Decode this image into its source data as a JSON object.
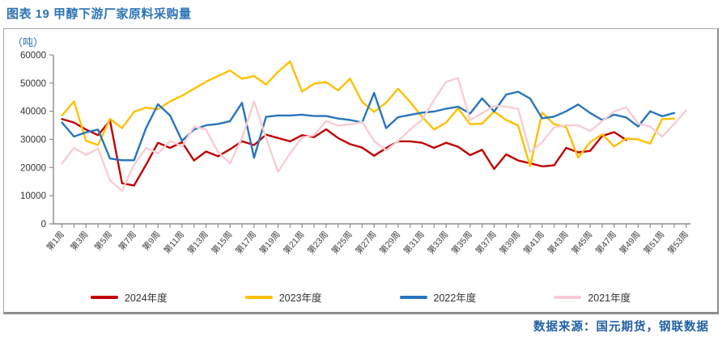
{
  "page": {
    "title": "图表 19  甲醇下游厂家原料采购量",
    "source": "数据来源：国元期货，钢联数据"
  },
  "chart_data": {
    "type": "line",
    "title": "甲醇下游厂家原料采购量",
    "unit_label": "（吨）",
    "ylabel": "吨",
    "ylim": [
      0,
      60000
    ],
    "ytick_step": 10000,
    "y_tick_labels": [
      "0",
      "10000",
      "20000",
      "30000",
      "40000",
      "50000",
      "60000"
    ],
    "weeks": 53,
    "x_tick_labels": [
      "第1周",
      "第3周",
      "第5周",
      "第7周",
      "第9周",
      "第11周",
      "第13周",
      "第15周",
      "第17周",
      "第19周",
      "第21周",
      "第23周",
      "第25周",
      "第27周",
      "第29周",
      "第31周",
      "第33周",
      "第35周",
      "第37周",
      "第39周",
      "第41周",
      "第43周",
      "第45周",
      "第47周",
      "第49周",
      "第51周",
      "第53周"
    ],
    "grid": false,
    "legend_position": "bottom",
    "axis_color": "#8c8c8c",
    "legend_order": [
      "2024年度",
      "2023年度",
      "2022年度",
      "2021年度"
    ],
    "series": [
      {
        "name": "2024年度",
        "color": "#C00000",
        "start_week": 1,
        "values": [
          37200,
          36000,
          33500,
          31500,
          36700,
          14400,
          13600,
          21000,
          28800,
          27000,
          29000,
          22500,
          25700,
          24000,
          26500,
          29300,
          28000,
          31700,
          30500,
          29300,
          31500,
          30800,
          33600,
          30500,
          28300,
          27100,
          24200,
          26900,
          29300,
          29300,
          28800,
          27000,
          28800,
          27400,
          24400,
          26300,
          19500,
          24700,
          22500,
          21500,
          20400,
          20800,
          27000,
          25400,
          25900,
          31200,
          32600,
          29800
        ]
      },
      {
        "name": "2023年度",
        "color": "#FFC000",
        "start_week": 1,
        "values": [
          38500,
          43500,
          29500,
          28000,
          37300,
          34000,
          39800,
          41300,
          40700,
          43500,
          45500,
          48000,
          50500,
          52500,
          54500,
          51500,
          52500,
          49500,
          54000,
          57700,
          47000,
          49800,
          50400,
          47400,
          51600,
          43300,
          39800,
          43000,
          48000,
          43300,
          38000,
          33500,
          36000,
          41000,
          35400,
          35600,
          39900,
          36900,
          35000,
          20500,
          39500,
          35400,
          34400,
          23500,
          29000,
          31800,
          27500,
          30300,
          30000,
          28500,
          37200,
          37400
        ]
      },
      {
        "name": "2022年度",
        "color": "#2775BC",
        "start_week": 1,
        "values": [
          36000,
          31000,
          32500,
          33500,
          23200,
          22600,
          22600,
          34000,
          42500,
          38500,
          29500,
          33500,
          35000,
          35500,
          36500,
          43000,
          23500,
          38000,
          38500,
          38500,
          38800,
          38300,
          38300,
          37400,
          36900,
          36000,
          46500,
          34000,
          37900,
          38700,
          39500,
          39900,
          40900,
          41600,
          39200,
          44600,
          39900,
          45900,
          46900,
          44500,
          37500,
          38100,
          40000,
          42400,
          39400,
          36900,
          38800,
          37800,
          34600,
          40000,
          38200,
          39400
        ]
      },
      {
        "name": "2021年度",
        "color": "#F7CDD3",
        "start_week": 1,
        "values": [
          21500,
          27000,
          24500,
          26700,
          15500,
          11700,
          21000,
          27000,
          25000,
          29500,
          27500,
          34500,
          33500,
          25500,
          21500,
          30500,
          43500,
          30500,
          18500,
          25000,
          30700,
          31500,
          36500,
          34900,
          35300,
          36200,
          29400,
          26100,
          29400,
          33500,
          37000,
          44000,
          50500,
          51800,
          36900,
          39300,
          41900,
          41600,
          40900,
          25500,
          29000,
          34300,
          35000,
          35000,
          33000,
          36500,
          40000,
          41400,
          35600,
          34500,
          31000,
          35500,
          40300
        ]
      }
    ]
  }
}
